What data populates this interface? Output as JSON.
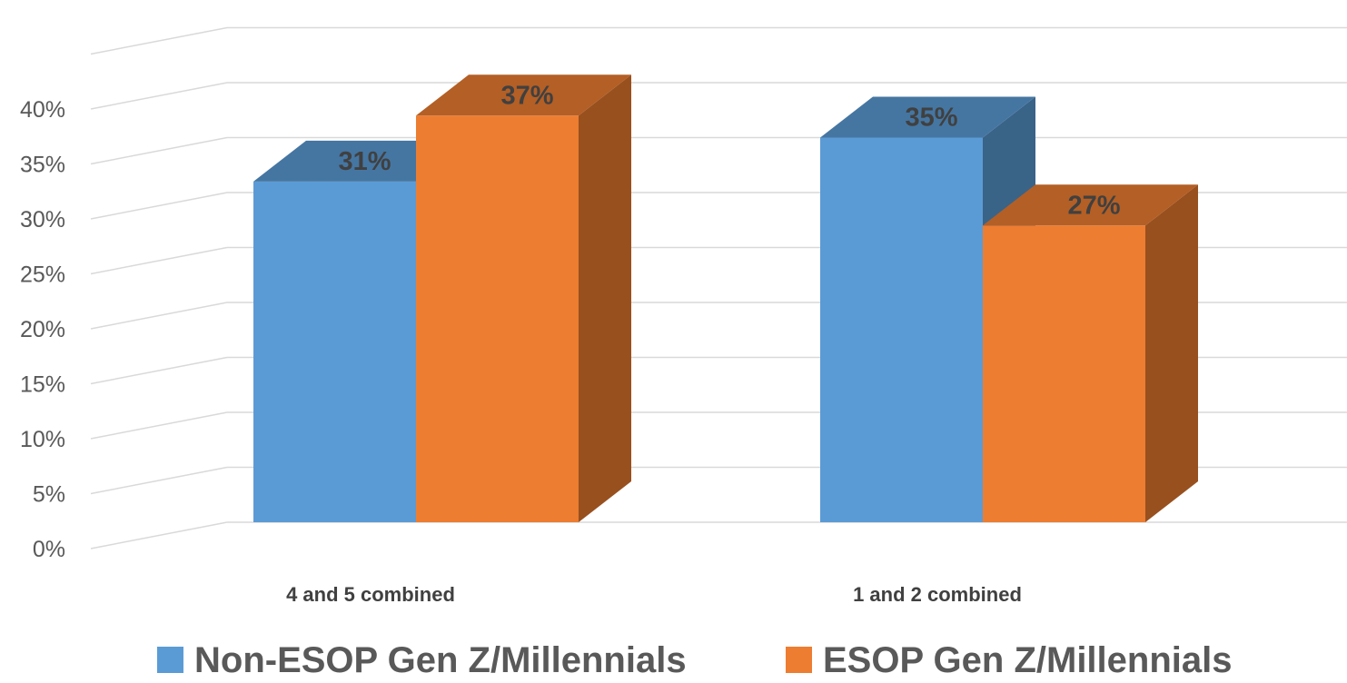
{
  "chart_data": {
    "type": "bar",
    "style": "3d-clustered-column",
    "categories": [
      "4 and 5 combined",
      "1 and 2 combined"
    ],
    "series": [
      {
        "name": "Non-ESOP Gen Z/Millennials",
        "values": [
          31,
          35
        ],
        "labels": [
          "31%",
          "35%"
        ],
        "color": "#5b9bd5"
      },
      {
        "name": "ESOP Gen Z/Millennials",
        "values": [
          37,
          27
        ],
        "labels": [
          "37%",
          "27%"
        ],
        "color": "#ed7d31"
      }
    ],
    "ylim": [
      0,
      40
    ],
    "ytick_step": 5,
    "yticks": [
      "0%",
      "5%",
      "10%",
      "15%",
      "20%",
      "25%",
      "30%",
      "35%",
      "40%"
    ],
    "grid": true,
    "legend": "bottom",
    "title": "",
    "xlabel": "",
    "ylabel": ""
  }
}
